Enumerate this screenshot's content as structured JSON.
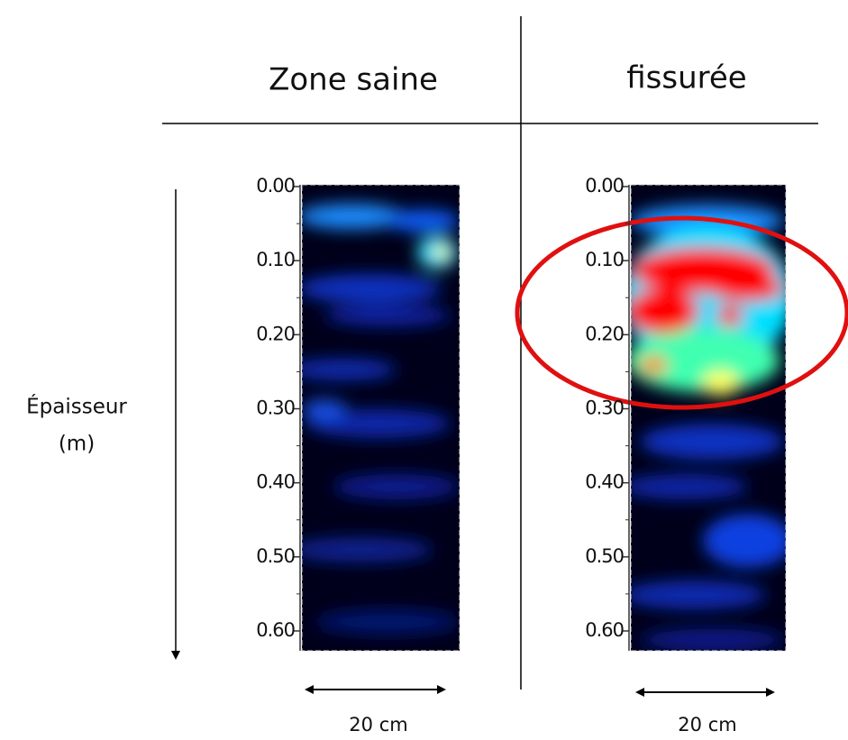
{
  "axis_label": {
    "line1": "Épaisseur",
    "line2": "(m)"
  },
  "panels": [
    {
      "title": "Zone saine",
      "ticks": [
        "0.00",
        "0.10",
        "0.20",
        "0.30",
        "0.40",
        "0.50",
        "0.60"
      ],
      "width_label": "20 cm"
    },
    {
      "title": "fissurée",
      "ticks": [
        "0.00",
        "0.10",
        "0.20",
        "0.30",
        "0.40",
        "0.50",
        "0.60"
      ],
      "width_label": "20 cm"
    }
  ]
}
